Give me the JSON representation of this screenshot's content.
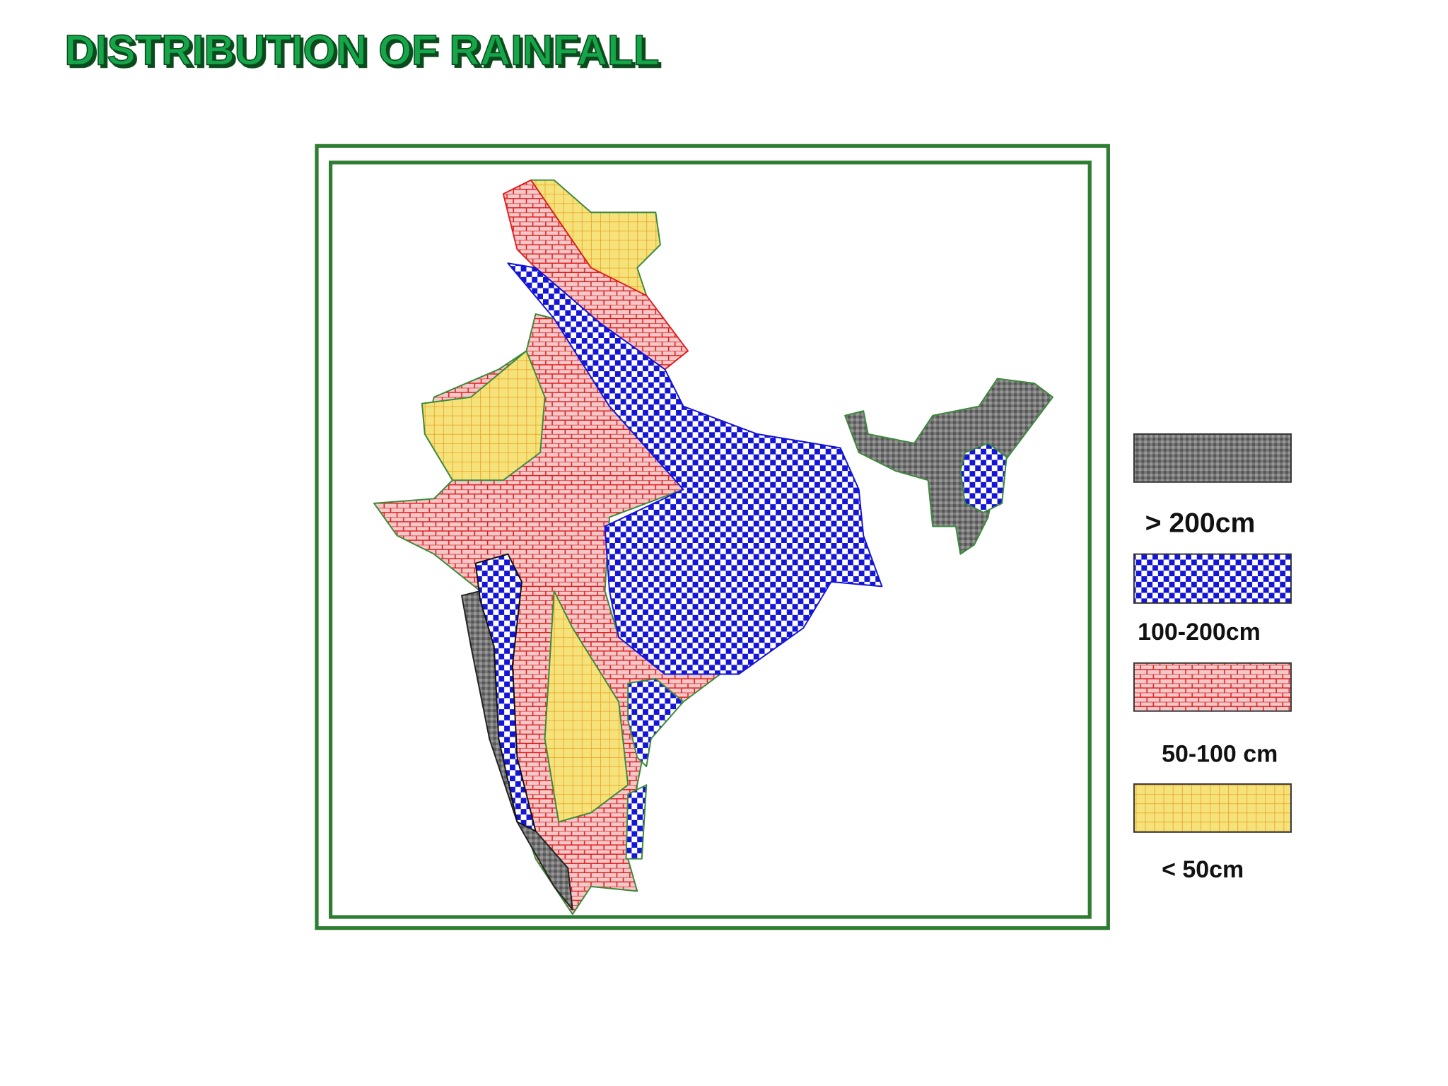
{
  "title": "DISTRIBUTION OF RAINFALL",
  "legend": [
    {
      "label": "> 200cm"
    },
    {
      "label": "100-200cm"
    },
    {
      "label": "50-100 cm"
    },
    {
      "label": "< 50cm"
    }
  ]
}
